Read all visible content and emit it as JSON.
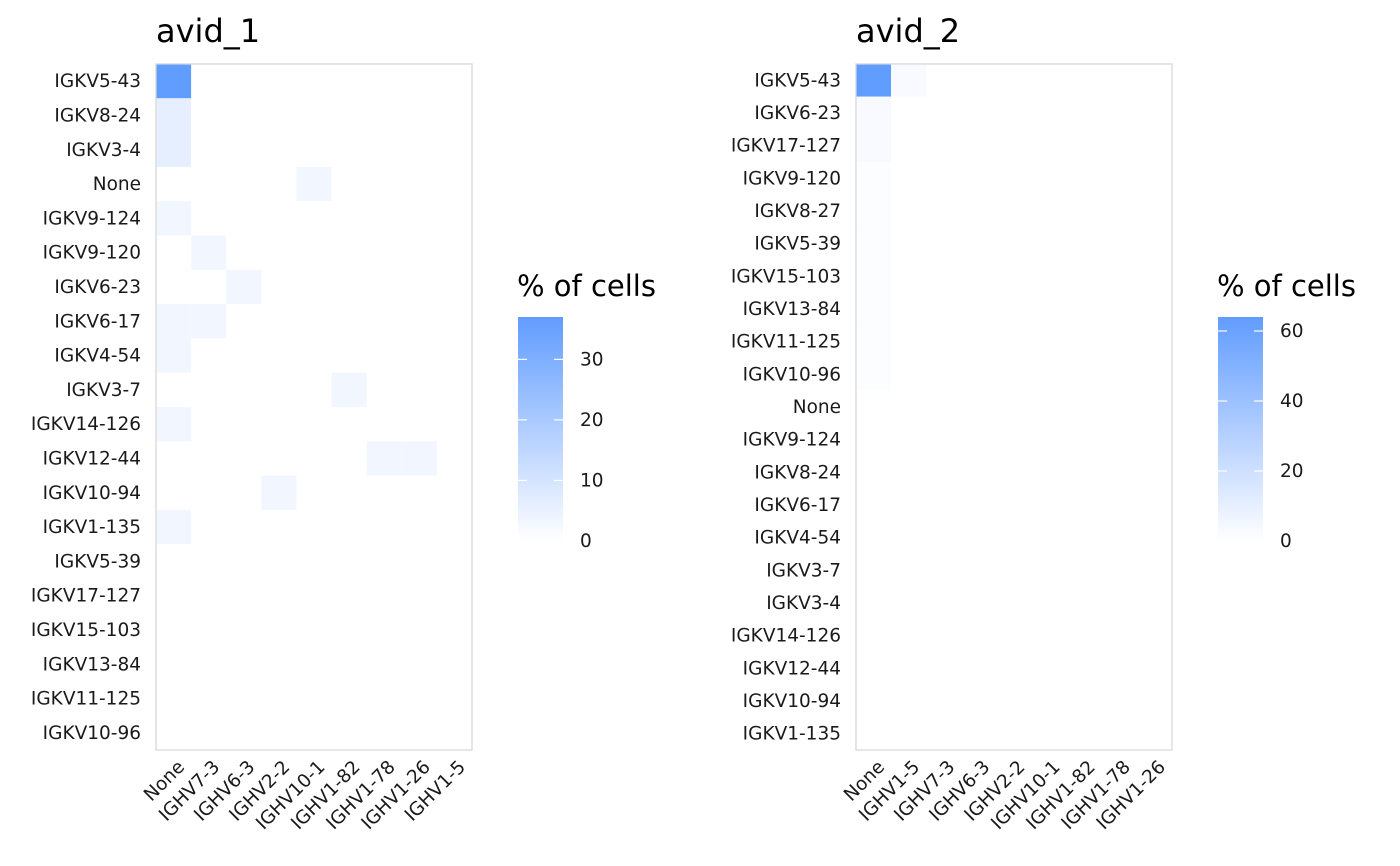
{
  "chart_data": [
    {
      "type": "heatmap",
      "title": "avid_1",
      "x_categories": [
        "None",
        "IGHV7-3",
        "IGHV6-3",
        "IGHV2-2",
        "IGHV10-1",
        "IGHV1-82",
        "IGHV1-78",
        "IGHV1-26",
        "IGHV1-5"
      ],
      "y_categories": [
        "IGKV5-43",
        "IGKV8-24",
        "IGKV3-4",
        "None",
        "IGKV9-124",
        "IGKV9-120",
        "IGKV6-23",
        "IGKV6-17",
        "IGKV4-54",
        "IGKV3-7",
        "IGKV14-126",
        "IGKV12-44",
        "IGKV10-94",
        "IGKV1-135",
        "IGKV5-39",
        "IGKV17-127",
        "IGKV15-103",
        "IGKV13-84",
        "IGKV11-125",
        "IGKV10-96"
      ],
      "cells": [
        {
          "x": "None",
          "y": "IGKV5-43",
          "value": 37
        },
        {
          "x": "None",
          "y": "IGKV8-24",
          "value": 6
        },
        {
          "x": "None",
          "y": "IGKV3-4",
          "value": 6
        },
        {
          "x": "IGHV10-1",
          "y": "None",
          "value": 3
        },
        {
          "x": "None",
          "y": "IGKV9-124",
          "value": 3
        },
        {
          "x": "IGHV7-3",
          "y": "IGKV9-120",
          "value": 3
        },
        {
          "x": "IGHV6-3",
          "y": "IGKV6-23",
          "value": 3
        },
        {
          "x": "None",
          "y": "IGKV6-17",
          "value": 3
        },
        {
          "x": "IGHV7-3",
          "y": "IGKV6-17",
          "value": 3
        },
        {
          "x": "None",
          "y": "IGKV4-54",
          "value": 3
        },
        {
          "x": "IGHV1-82",
          "y": "IGKV3-7",
          "value": 3
        },
        {
          "x": "None",
          "y": "IGKV14-126",
          "value": 3
        },
        {
          "x": "IGHV1-78",
          "y": "IGKV12-44",
          "value": 3
        },
        {
          "x": "IGHV1-26",
          "y": "IGKV12-44",
          "value": 3
        },
        {
          "x": "IGHV2-2",
          "y": "IGKV10-94",
          "value": 3
        },
        {
          "x": "None",
          "y": "IGKV1-135",
          "value": 3
        }
      ],
      "legend": {
        "title": "% of cells",
        "min": 0,
        "max": 37,
        "ticks": [
          0,
          10,
          20,
          30
        ],
        "low_color": "#FFFFFF",
        "high_color": "#619CFF",
        "placement": "right"
      }
    },
    {
      "type": "heatmap",
      "title": "avid_2",
      "x_categories": [
        "None",
        "IGHV1-5",
        "IGHV7-3",
        "IGHV6-3",
        "IGHV2-2",
        "IGHV10-1",
        "IGHV1-82",
        "IGHV1-78",
        "IGHV1-26"
      ],
      "y_categories": [
        "IGKV5-43",
        "IGKV6-23",
        "IGKV17-127",
        "IGKV9-120",
        "IGKV8-27",
        "IGKV5-39",
        "IGKV15-103",
        "IGKV13-84",
        "IGKV11-125",
        "IGKV10-96",
        "None",
        "IGKV9-124",
        "IGKV8-24",
        "IGKV6-17",
        "IGKV4-54",
        "IGKV3-7",
        "IGKV3-4",
        "IGKV14-126",
        "IGKV12-44",
        "IGKV10-94",
        "IGKV1-135"
      ],
      "cells": [
        {
          "x": "None",
          "y": "IGKV5-43",
          "value": 64
        },
        {
          "x": "IGHV1-5",
          "y": "IGKV5-43",
          "value": 3
        },
        {
          "x": "None",
          "y": "IGKV6-23",
          "value": 3
        },
        {
          "x": "None",
          "y": "IGKV17-127",
          "value": 3
        },
        {
          "x": "None",
          "y": "IGKV9-120",
          "value": 1.5
        },
        {
          "x": "None",
          "y": "IGKV8-27",
          "value": 1.5
        },
        {
          "x": "None",
          "y": "IGKV5-39",
          "value": 1.5
        },
        {
          "x": "None",
          "y": "IGKV15-103",
          "value": 1.5
        },
        {
          "x": "None",
          "y": "IGKV13-84",
          "value": 1.5
        },
        {
          "x": "None",
          "y": "IGKV11-125",
          "value": 1.5
        },
        {
          "x": "None",
          "y": "IGKV10-96",
          "value": 1.5
        }
      ],
      "legend": {
        "title": "% of cells",
        "min": 0,
        "max": 64,
        "ticks": [
          0,
          20,
          40,
          60
        ],
        "low_color": "#FFFFFF",
        "high_color": "#619CFF",
        "placement": "right"
      }
    }
  ]
}
